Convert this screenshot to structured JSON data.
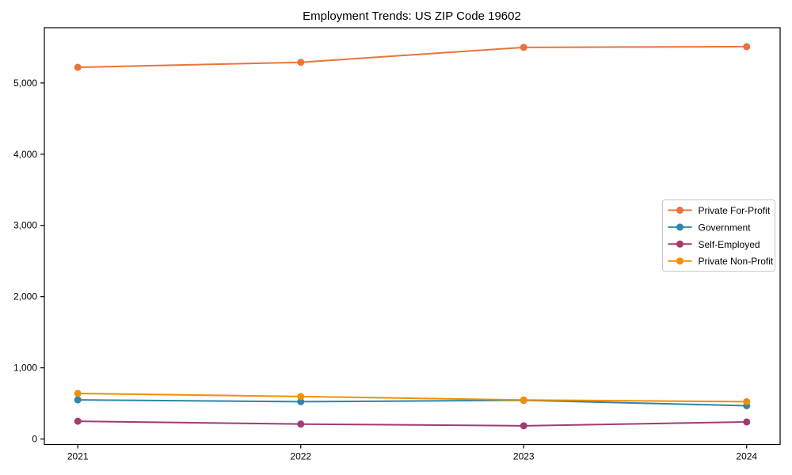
{
  "title": "Employment Trends: US ZIP Code 19602",
  "chart_data": {
    "type": "line",
    "title": "Employment Trends: US ZIP Code 19602",
    "xlabel": "",
    "ylabel": "",
    "x": [
      2021,
      2022,
      2023,
      2024
    ],
    "x_tick_labels": [
      "2021",
      "2022",
      "2023",
      "2024"
    ],
    "y_ticks": [
      0,
      1000,
      2000,
      3000,
      4000,
      5000
    ],
    "y_tick_labels": [
      "0",
      "1,000",
      "2,000",
      "3,000",
      "4,000",
      "5,000"
    ],
    "xlim": [
      2020.85,
      2024.15
    ],
    "ylim": [
      -77,
      5776
    ],
    "grid": false,
    "legend_position": "center right",
    "series": [
      {
        "name": "Private For-Profit",
        "color": "#E8743B",
        "values": [
          5220,
          5290,
          5500,
          5510
        ]
      },
      {
        "name": "Government",
        "color": "#2E86AB",
        "values": [
          550,
          525,
          544,
          468
        ]
      },
      {
        "name": "Self-Employed",
        "color": "#A23B72",
        "values": [
          250,
          210,
          186,
          240
        ]
      },
      {
        "name": "Private Non-Profit",
        "color": "#F18F01",
        "values": [
          640,
          597,
          548,
          525
        ]
      }
    ]
  },
  "colors": {
    "spine": "#000000",
    "legend_border": "#c8c8c8",
    "background": "#ffffff"
  }
}
